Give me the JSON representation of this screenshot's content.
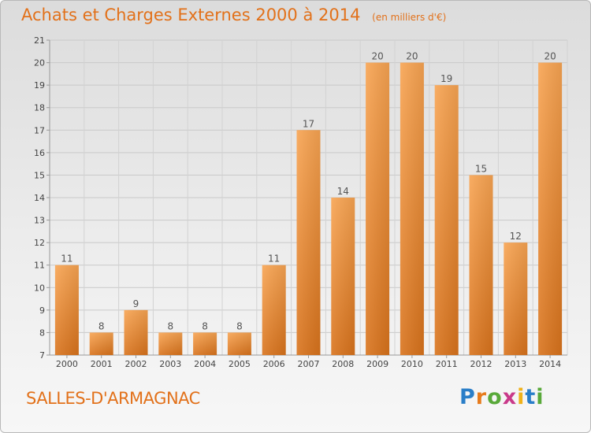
{
  "chart_data": {
    "type": "bar",
    "title": "Achats et Charges Externes 2000 à 2014",
    "subtitle": "(en milliers d'€)",
    "categories": [
      "2000",
      "2001",
      "2002",
      "2003",
      "2004",
      "2005",
      "2006",
      "2007",
      "2008",
      "2009",
      "2010",
      "2011",
      "2012",
      "2013",
      "2014"
    ],
    "values": [
      11,
      8,
      9,
      8,
      8,
      8,
      11,
      17,
      14,
      20,
      20,
      19,
      15,
      12,
      20
    ],
    "data_labels": [
      "11",
      "8",
      "9",
      "8",
      "8",
      "8",
      "11",
      "17",
      "14",
      "20",
      "20",
      "19",
      "15",
      "12",
      "20"
    ],
    "ylim": [
      7,
      21
    ],
    "yticks": [
      7,
      8,
      9,
      10,
      11,
      12,
      13,
      14,
      15,
      16,
      17,
      18,
      19,
      20,
      21
    ],
    "ytick_labels": [
      "7",
      "8",
      "9",
      "10",
      "11",
      "12",
      "13",
      "14",
      "15",
      "16",
      "17",
      "18",
      "19",
      "20",
      "21"
    ],
    "grid": true,
    "bar_color": "#f08c2c",
    "xlabel": "",
    "ylabel": ""
  },
  "footer": {
    "commune": "SALLES-D'ARMAGNAC",
    "logo_letters": [
      "P",
      "r",
      "o",
      "x",
      "i",
      "t",
      "i"
    ]
  }
}
